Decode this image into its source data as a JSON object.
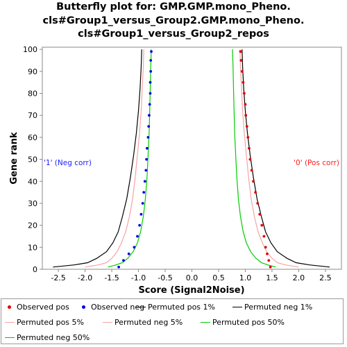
{
  "chart_data": {
    "type": "line",
    "title": [
      "Butterfly plot for: GMP.GMP.mono_Pheno.",
      "cls#Group1_versus_Group2.GMP.mono_Pheno.",
      "cls#Group1_versus_Group2_repos"
    ],
    "xlabel": "Score (Signal2Noise)",
    "ylabel": "Gene rank",
    "xlim": [
      -2.8,
      2.8
    ],
    "ylim": [
      0,
      101
    ],
    "xticks": [
      "-2.5",
      "-2.0",
      "-1.5",
      "-1.0",
      "-0.5",
      "0.0",
      "0.5",
      "1.0",
      "1.5",
      "2.0",
      "2.5"
    ],
    "yticks": [
      "0",
      "10",
      "20",
      "30",
      "40",
      "50",
      "60",
      "70",
      "80",
      "90",
      "100"
    ],
    "grid": false,
    "legend_position": "bottom",
    "annotations": {
      "neg_label": "'1' (Neg corr)",
      "pos_label": "'0' (Pos corr)"
    },
    "colors": {
      "observed_pos": "#e00000",
      "observed_neg": "#0000e0",
      "permuted_1": "#000000",
      "permuted_5": "#f6a3a3",
      "permuted_50": "#00cc00",
      "neg_label": "#2020ff",
      "pos_label": "#ff2020"
    },
    "series": [
      {
        "name": "Observed pos",
        "style": "dots",
        "color": "#e00000",
        "points": [
          [
            1.47,
            1
          ],
          [
            1.44,
            4
          ],
          [
            1.41,
            7
          ],
          [
            1.38,
            10
          ],
          [
            1.35,
            15
          ],
          [
            1.31,
            20
          ],
          [
            1.27,
            25
          ],
          [
            1.23,
            30
          ],
          [
            1.19,
            35
          ],
          [
            1.15,
            40
          ],
          [
            1.12,
            45
          ],
          [
            1.09,
            50
          ],
          [
            1.07,
            55
          ],
          [
            1.05,
            60
          ],
          [
            1.03,
            65
          ],
          [
            1.01,
            70
          ],
          [
            1.0,
            75
          ],
          [
            0.98,
            80
          ],
          [
            0.96,
            85
          ],
          [
            0.94,
            90
          ],
          [
            0.92,
            95
          ],
          [
            0.91,
            99
          ]
        ]
      },
      {
        "name": "Observed neg",
        "style": "dots",
        "color": "#0000e0",
        "points": [
          [
            -1.37,
            1
          ],
          [
            -1.28,
            4
          ],
          [
            -1.18,
            7
          ],
          [
            -1.08,
            10
          ],
          [
            -1.02,
            15
          ],
          [
            -0.98,
            20
          ],
          [
            -0.95,
            25
          ],
          [
            -0.92,
            30
          ],
          [
            -0.9,
            35
          ],
          [
            -0.88,
            40
          ],
          [
            -0.86,
            45
          ],
          [
            -0.85,
            50
          ],
          [
            -0.84,
            55
          ],
          [
            -0.82,
            60
          ],
          [
            -0.81,
            65
          ],
          [
            -0.8,
            70
          ],
          [
            -0.79,
            75
          ],
          [
            -0.78,
            80
          ],
          [
            -0.78,
            85
          ],
          [
            -0.77,
            90
          ],
          [
            -0.77,
            95
          ],
          [
            -0.76,
            99
          ]
        ]
      },
      {
        "name": "Permuted pos 1%",
        "style": "line",
        "color": "#000000",
        "points": [
          [
            2.58,
            1
          ],
          [
            2.2,
            2
          ],
          [
            1.95,
            3
          ],
          [
            1.78,
            5
          ],
          [
            1.6,
            8
          ],
          [
            1.48,
            12
          ],
          [
            1.38,
            17
          ],
          [
            1.3,
            24
          ],
          [
            1.22,
            32
          ],
          [
            1.15,
            42
          ],
          [
            1.09,
            52
          ],
          [
            1.04,
            62
          ],
          [
            1.0,
            72
          ],
          [
            0.97,
            82
          ],
          [
            0.95,
            92
          ],
          [
            0.94,
            100
          ]
        ]
      },
      {
        "name": "Permuted neg 1%",
        "style": "line",
        "color": "#000000",
        "points": [
          [
            -2.6,
            1
          ],
          [
            -2.2,
            2
          ],
          [
            -1.95,
            3
          ],
          [
            -1.78,
            5
          ],
          [
            -1.6,
            8
          ],
          [
            -1.48,
            12
          ],
          [
            -1.38,
            17
          ],
          [
            -1.3,
            24
          ],
          [
            -1.22,
            32
          ],
          [
            -1.15,
            42
          ],
          [
            -1.09,
            52
          ],
          [
            -1.04,
            62
          ],
          [
            -1.0,
            72
          ],
          [
            -0.97,
            82
          ],
          [
            -0.95,
            92
          ],
          [
            -0.94,
            100
          ]
        ]
      },
      {
        "name": "Permuted pos 5%",
        "style": "line",
        "color": "#f6a3a3",
        "points": [
          [
            2.0,
            1
          ],
          [
            1.75,
            2
          ],
          [
            1.6,
            3
          ],
          [
            1.5,
            5
          ],
          [
            1.4,
            8
          ],
          [
            1.32,
            12
          ],
          [
            1.24,
            17
          ],
          [
            1.17,
            24
          ],
          [
            1.11,
            32
          ],
          [
            1.06,
            42
          ],
          [
            1.02,
            52
          ],
          [
            0.98,
            62
          ],
          [
            0.95,
            72
          ],
          [
            0.93,
            82
          ],
          [
            0.91,
            92
          ],
          [
            0.9,
            100
          ]
        ]
      },
      {
        "name": "Permuted neg 5%",
        "style": "line",
        "color": "#f6a3a3",
        "points": [
          [
            -2.0,
            1
          ],
          [
            -1.75,
            2
          ],
          [
            -1.6,
            3
          ],
          [
            -1.5,
            5
          ],
          [
            -1.4,
            8
          ],
          [
            -1.32,
            12
          ],
          [
            -1.24,
            17
          ],
          [
            -1.17,
            24
          ],
          [
            -1.11,
            32
          ],
          [
            -1.06,
            42
          ],
          [
            -1.02,
            52
          ],
          [
            -0.98,
            62
          ],
          [
            -0.95,
            72
          ],
          [
            -0.93,
            82
          ],
          [
            -0.91,
            92
          ],
          [
            -0.9,
            100
          ]
        ]
      },
      {
        "name": "Permuted pos 50%",
        "style": "line",
        "color": "#00cc00",
        "points": [
          [
            1.57,
            1
          ],
          [
            1.42,
            2
          ],
          [
            1.3,
            3
          ],
          [
            1.2,
            5
          ],
          [
            1.1,
            8
          ],
          [
            1.02,
            12
          ],
          [
            0.96,
            17
          ],
          [
            0.91,
            24
          ],
          [
            0.87,
            32
          ],
          [
            0.84,
            42
          ],
          [
            0.82,
            52
          ],
          [
            0.8,
            62
          ],
          [
            0.79,
            72
          ],
          [
            0.78,
            82
          ],
          [
            0.77,
            92
          ],
          [
            0.76,
            100
          ]
        ]
      },
      {
        "name": "Permuted neg 50%",
        "style": "line",
        "color": "#00cc00",
        "points": [
          [
            -1.57,
            1
          ],
          [
            -1.42,
            2
          ],
          [
            -1.3,
            3
          ],
          [
            -1.2,
            5
          ],
          [
            -1.1,
            8
          ],
          [
            -1.02,
            12
          ],
          [
            -0.96,
            17
          ],
          [
            -0.91,
            24
          ],
          [
            -0.87,
            32
          ],
          [
            -0.84,
            42
          ],
          [
            -0.82,
            52
          ],
          [
            -0.8,
            62
          ],
          [
            -0.79,
            72
          ],
          [
            -0.78,
            82
          ],
          [
            -0.77,
            92
          ],
          [
            -0.76,
            100
          ]
        ]
      }
    ]
  },
  "legend": {
    "items": [
      {
        "label": "Observed pos",
        "kind": "dot",
        "color": "#e00000"
      },
      {
        "label": "Observed neg",
        "kind": "dot",
        "color": "#0000e0"
      },
      {
        "label": "Permuted pos 1%",
        "kind": "line",
        "color": "#000000"
      },
      {
        "label": "Permuted neg 1%",
        "kind": "line",
        "color": "#000000"
      },
      {
        "label": "Permuted pos 5%",
        "kind": "line",
        "color": "#f6a3a3"
      },
      {
        "label": "Permuted neg 5%",
        "kind": "line",
        "color": "#f6a3a3"
      },
      {
        "label": "Permuted pos 50%",
        "kind": "line",
        "color": "#00cc00"
      },
      {
        "label": "Permuted neg 50%",
        "kind": "line",
        "color": "#00cc00"
      }
    ]
  }
}
